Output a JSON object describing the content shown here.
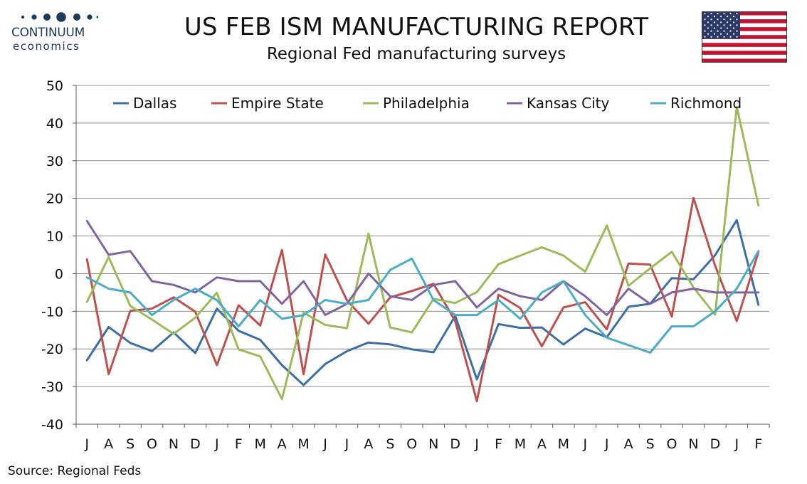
{
  "header": {
    "title": "US FEB ISM MANUFACTURING REPORT",
    "subtitle": "Regional Fed manufacturing surveys"
  },
  "logo": {
    "name": "CONTINUUM",
    "sub": "economics",
    "color": "#1d3a57"
  },
  "flag": {
    "icon": "us-flag-icon"
  },
  "source": "Source: Regional Feds",
  "chart_data": {
    "type": "line",
    "title": "",
    "xlabel": "",
    "ylabel": "",
    "categories": [
      "J",
      "A",
      "S",
      "O",
      "N",
      "D",
      "J",
      "F",
      "M",
      "A",
      "M",
      "J",
      "J",
      "A",
      "S",
      "O",
      "N",
      "D",
      "J",
      "F",
      "M",
      "A",
      "M",
      "J",
      "J",
      "A",
      "S",
      "O",
      "N",
      "D",
      "J",
      "F"
    ],
    "ylim": [
      -40,
      50
    ],
    "yticks": [
      -40,
      -30,
      -20,
      -10,
      0,
      10,
      20,
      30,
      40,
      50
    ],
    "grid": true,
    "legend": "top",
    "series": [
      {
        "name": "Dallas",
        "color": "#3c6fa8",
        "values": [
          -23,
          -14.2,
          -18.4,
          -20.6,
          -15.6,
          -21.1,
          -9.3,
          -15.2,
          -17.6,
          -24.3,
          -29.6,
          -24,
          -20.6,
          -18.3,
          -18.8,
          -20.1,
          -20.9,
          -11.2,
          -28.1,
          -13.4,
          -14.4,
          -14.3,
          -18.8,
          -14.6,
          -16.9,
          -8.8,
          -8,
          -1.2,
          -1.5,
          4.9,
          14.2,
          -8.3
        ]
      },
      {
        "name": "Empire State",
        "color": "#c0504d",
        "values": [
          3.8,
          -26.7,
          -9.9,
          -9.3,
          -6.3,
          -10.1,
          -24.3,
          -8.4,
          -13.8,
          6.3,
          -26.7,
          5.1,
          -7.1,
          -13.3,
          -6.3,
          -4.6,
          -2.7,
          -12.6,
          -33.9,
          -5.6,
          -9.1,
          -19.3,
          -9,
          -7.6,
          -14.8,
          2.7,
          2.4,
          -11.4,
          20.1,
          2.1,
          -12.6,
          5.7
        ]
      },
      {
        "name": "Philadelphia",
        "color": "#9bbb59",
        "values": [
          -7.5,
          4.4,
          -8.6,
          -12.2,
          -16,
          -11.7,
          -5.1,
          -20.1,
          -22,
          -33.3,
          -10.4,
          -13.6,
          -14.5,
          10.6,
          -14.3,
          -15.6,
          -6.7,
          -7.8,
          -4.9,
          2.5,
          4.8,
          7,
          4.8,
          0.5,
          12.8,
          -3.2,
          1.4,
          5.8,
          -3.7,
          -10.9,
          44.3,
          18.1
        ]
      },
      {
        "name": "Kansas City",
        "color": "#8064a2",
        "values": [
          14,
          5,
          6,
          -2,
          -3,
          -5,
          -1,
          -2,
          -2,
          -8,
          -2,
          -11,
          -8,
          0,
          -6,
          -7,
          -3,
          -2,
          -9,
          -4,
          -6,
          -7,
          -2,
          -6,
          -11,
          -4,
          -8,
          -5,
          -4,
          -5,
          -5,
          -5
        ]
      },
      {
        "name": "Richmond",
        "color": "#4bacc6",
        "values": [
          -1,
          -4,
          -5,
          -11,
          -7,
          -4,
          -7,
          -14,
          -7,
          -12,
          -11,
          -7,
          -8,
          -7,
          1,
          4,
          -7,
          -11,
          -11,
          -7,
          -12,
          -5,
          -2,
          -11,
          -17,
          -19,
          -21,
          -14,
          -14,
          -10,
          -4,
          6
        ]
      }
    ]
  }
}
